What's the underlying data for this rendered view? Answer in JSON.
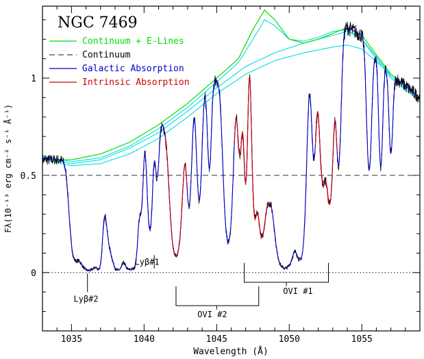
{
  "chart_data": {
    "type": "line",
    "title": "NGC 7469",
    "xlabel": "Wavelength (Å)",
    "ylabel": "Fλ(10⁻¹³ erg cm⁻² s⁻¹ Å⁻¹)",
    "xlim": [
      1033,
      1059
    ],
    "ylim": [
      -0.3,
      1.37
    ],
    "xticks": [
      1035,
      1040,
      1045,
      1050,
      1055
    ],
    "yticks": [
      0,
      0.5,
      1
    ],
    "xtick_labels": [
      "1035",
      "1040",
      "1045",
      "1050",
      "1055"
    ],
    "ytick_labels": [
      "0",
      "0.5",
      "1"
    ],
    "legend": {
      "position": "top-left",
      "entries": [
        {
          "label": "Continuum + E-Lines",
          "color": "#00dd00",
          "style": "solid"
        },
        {
          "label": "Continuum",
          "color": "#444444",
          "style": "dashed"
        },
        {
          "label": "Galactic Absorption",
          "color": "#0000cc",
          "style": "solid"
        },
        {
          "label": "Intrinsic Absorption",
          "color": "#cc0000",
          "style": "solid"
        }
      ]
    },
    "colors": {
      "data": "#000000",
      "cont_elines": "#00dd00",
      "components": "#00dddd",
      "continuum": "#444444",
      "galactic": "#0000cc",
      "intrinsic": "#cc0000"
    },
    "continuum_level": 0.5,
    "zero_level": 0,
    "cont_elines_curve": {
      "x": [
        1033,
        1035,
        1037,
        1039,
        1041,
        1043,
        1045,
        1046.5,
        1047.5,
        1048.3,
        1049,
        1050,
        1051,
        1052,
        1053,
        1054,
        1055,
        1056,
        1057,
        1059
      ],
      "y": [
        0.58,
        0.58,
        0.61,
        0.67,
        0.76,
        0.87,
        1.0,
        1.1,
        1.25,
        1.35,
        1.3,
        1.2,
        1.18,
        1.2,
        1.23,
        1.26,
        1.22,
        1.12,
        1.02,
        0.9
      ]
    },
    "emission_components": [
      {
        "x": [
          1033,
          1035,
          1037,
          1039,
          1041,
          1043,
          1045,
          1046.5,
          1047.5,
          1048.3,
          1049,
          1050,
          1051,
          1052,
          1053,
          1054,
          1055,
          1056,
          1057,
          1059
        ],
        "y": [
          0.6,
          0.57,
          0.59,
          0.65,
          0.74,
          0.85,
          0.98,
          1.08,
          1.2,
          1.3,
          1.27,
          1.2,
          1.19,
          1.21,
          1.24,
          1.25,
          1.2,
          1.1,
          1.0,
          0.88
        ]
      },
      {
        "x": [
          1033,
          1035,
          1037,
          1039,
          1041,
          1043,
          1045,
          1047,
          1049,
          1051,
          1053,
          1054,
          1055,
          1056,
          1057,
          1059
        ],
        "y": [
          0.59,
          0.56,
          0.58,
          0.64,
          0.72,
          0.83,
          0.95,
          1.06,
          1.13,
          1.18,
          1.22,
          1.24,
          1.2,
          1.11,
          1.01,
          0.89
        ]
      },
      {
        "x": [
          1033,
          1035,
          1037,
          1039,
          1041,
          1043,
          1045,
          1047,
          1049,
          1051,
          1053,
          1054,
          1055,
          1057,
          1059
        ],
        "y": [
          0.58,
          0.55,
          0.56,
          0.61,
          0.69,
          0.8,
          0.92,
          1.02,
          1.09,
          1.13,
          1.16,
          1.17,
          1.15,
          1.02,
          0.9
        ]
      }
    ],
    "absorption_lines": [
      {
        "center": 1035.2,
        "width": 0.25,
        "depth": 0.8,
        "kind": "galactic"
      },
      {
        "center": 1036.2,
        "width": 0.5,
        "depth": 1.0,
        "kind": "galactic"
      },
      {
        "center": 1036.9,
        "width": 0.15,
        "depth": 0.85,
        "kind": "galactic"
      },
      {
        "center": 1037.6,
        "width": 0.2,
        "depth": 0.6,
        "kind": "galactic"
      },
      {
        "center": 1038.2,
        "width": 0.3,
        "depth": 0.98,
        "kind": "galactic"
      },
      {
        "center": 1038.9,
        "width": 0.2,
        "depth": 0.95,
        "kind": "galactic"
      },
      {
        "center": 1039.3,
        "width": 0.2,
        "depth": 0.95,
        "kind": "galactic"
      },
      {
        "center": 1039.8,
        "width": 0.12,
        "depth": 0.5,
        "kind": "galactic"
      },
      {
        "center": 1040.4,
        "width": 0.15,
        "depth": 0.7,
        "kind": "galactic"
      },
      {
        "center": 1040.9,
        "width": 0.12,
        "depth": 0.35,
        "kind": "galactic"
      },
      {
        "center": 1042.2,
        "width": 0.3,
        "depth": 0.9,
        "kind": "intrinsic"
      },
      {
        "center": 1043.1,
        "width": 0.15,
        "depth": 0.6,
        "kind": "galactic"
      },
      {
        "center": 1043.8,
        "width": 0.15,
        "depth": 0.6,
        "kind": "galactic"
      },
      {
        "center": 1044.5,
        "width": 0.12,
        "depth": 0.45,
        "kind": "galactic"
      },
      {
        "center": 1045.8,
        "width": 0.25,
        "depth": 0.85,
        "kind": "galactic"
      },
      {
        "center": 1046.6,
        "width": 0.15,
        "depth": 0.45,
        "kind": "intrinsic"
      },
      {
        "center": 1047.0,
        "width": 0.12,
        "depth": 0.6,
        "kind": "intrinsic"
      },
      {
        "center": 1047.6,
        "width": 0.15,
        "depth": 0.7,
        "kind": "intrinsic"
      },
      {
        "center": 1048.1,
        "width": 0.25,
        "depth": 0.85,
        "kind": "intrinsic"
      },
      {
        "center": 1048.6,
        "width": 0.2,
        "depth": 0.4,
        "kind": "galactic"
      },
      {
        "center": 1049.7,
        "width": 0.55,
        "depth": 1.0,
        "kind": "galactic"
      },
      {
        "center": 1050.8,
        "width": 0.25,
        "depth": 0.9,
        "kind": "galactic"
      },
      {
        "center": 1051.7,
        "width": 0.15,
        "depth": 0.5,
        "kind": "galactic"
      },
      {
        "center": 1052.3,
        "width": 0.2,
        "depth": 0.6,
        "kind": "intrinsic"
      },
      {
        "center": 1052.8,
        "width": 0.2,
        "depth": 0.7,
        "kind": "intrinsic"
      },
      {
        "center": 1053.4,
        "width": 0.15,
        "depth": 0.55,
        "kind": "galactic"
      },
      {
        "center": 1055.5,
        "width": 0.15,
        "depth": 0.55,
        "kind": "galactic"
      },
      {
        "center": 1056.3,
        "width": 0.12,
        "depth": 0.5,
        "kind": "galactic"
      },
      {
        "center": 1057.0,
        "width": 0.12,
        "depth": 0.4,
        "kind": "galactic"
      }
    ],
    "annotations": [
      {
        "text": "Lyβ#2",
        "tick_x": 1036.1,
        "tick_y": [
          -0.005,
          -0.1
        ],
        "label_x": 1036.0,
        "label_y": -0.15
      },
      {
        "text": "Lyβ#1",
        "tick_x": 1040.7,
        "tick_y": [
          0.09,
          0.02
        ],
        "label_x": 1040.2,
        "label_y": 0.04
      }
    ],
    "brackets": [
      {
        "label": "OVI #1",
        "x": [
          1046.9,
          1052.7
        ],
        "y": -0.05,
        "tick_y": 0.05,
        "direction": "up",
        "stem_x": 1049.8,
        "stem_y": -0.07,
        "label_x": 1050.6,
        "label_y": -0.11
      },
      {
        "label": "OVI #2",
        "x": [
          1042.2,
          1047.9
        ],
        "y": -0.17,
        "tick_y": -0.07,
        "direction": "up",
        "stem_x": 1045.0,
        "stem_y": -0.19,
        "label_x": 1044.7,
        "label_y": -0.23
      }
    ]
  }
}
